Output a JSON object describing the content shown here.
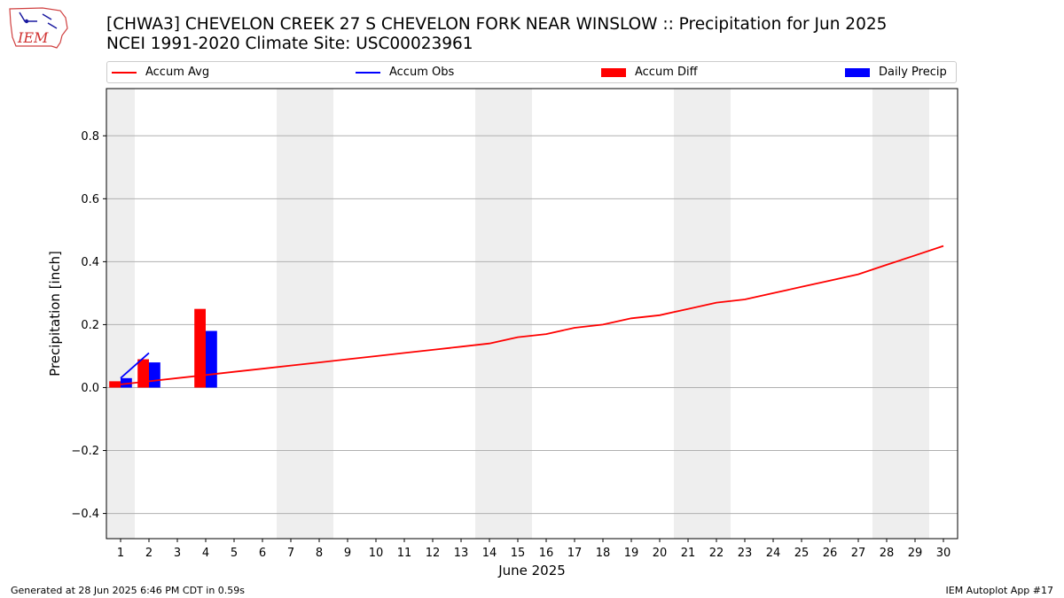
{
  "title": {
    "line1": "[CHWA3] CHEVELON CREEK 27 S CHEVELON FORK NEAR WINSLOW :: Precipitation for Jun 2025",
    "line2": "NCEI 1991-2020 Climate Site: USC00023961"
  },
  "logo": {
    "text": "IEM"
  },
  "legend": {
    "accum_avg": "Accum Avg",
    "accum_obs": "Accum Obs",
    "accum_diff": "Accum Diff",
    "daily_precip": "Daily Precip"
  },
  "colors": {
    "accum_avg": "#ff0000",
    "accum_obs": "#0000ff",
    "accum_diff": "#ff0000",
    "daily_precip": "#0000ff",
    "weekend_shade": "#eeeeee",
    "grid": "#b0b0b0"
  },
  "footer": {
    "left": "Generated at 28 Jun 2025 6:46 PM CDT in 0.59s",
    "right": "IEM Autoplot App #17"
  },
  "chart_data": {
    "type": "bar",
    "xlabel": "June 2025",
    "ylabel": "Precipitation [inch]",
    "xlim": [
      0.5,
      30.5
    ],
    "ylim": [
      -0.48,
      0.95
    ],
    "yticks": [
      -0.4,
      -0.2,
      0.0,
      0.2,
      0.4,
      0.6,
      0.8
    ],
    "ytick_labels": [
      "−0.4",
      "−0.2",
      "0.0",
      "0.2",
      "0.4",
      "0.6",
      "0.8"
    ],
    "days": [
      1,
      2,
      3,
      4,
      5,
      6,
      7,
      8,
      9,
      10,
      11,
      12,
      13,
      14,
      15,
      16,
      17,
      18,
      19,
      20,
      21,
      22,
      23,
      24,
      25,
      26,
      27,
      28,
      29,
      30
    ],
    "day_labels": [
      "1",
      "2",
      "3",
      "4",
      "5",
      "6",
      "7",
      "8",
      "9",
      "10",
      "11",
      "12",
      "13",
      "14",
      "15",
      "16",
      "17",
      "18",
      "19",
      "20",
      "21",
      "22",
      "23",
      "24",
      "25",
      "26",
      "27",
      "28",
      "29",
      "30"
    ],
    "weekend_days": [
      1,
      7,
      8,
      14,
      15,
      21,
      22,
      28,
      29
    ],
    "grid": true,
    "legend_position": "top",
    "series": [
      {
        "name": "Accum Avg",
        "kind": "line",
        "x": [
          1,
          2,
          3,
          4,
          5,
          6,
          7,
          8,
          9,
          10,
          11,
          12,
          13,
          14,
          15,
          16,
          17,
          18,
          19,
          20,
          21,
          22,
          23,
          24,
          25,
          26,
          27,
          28,
          29,
          30
        ],
        "values": [
          0.01,
          0.02,
          0.03,
          0.04,
          0.05,
          0.06,
          0.07,
          0.08,
          0.09,
          0.1,
          0.11,
          0.12,
          0.13,
          0.14,
          0.16,
          0.17,
          0.19,
          0.2,
          0.22,
          0.23,
          0.25,
          0.27,
          0.28,
          0.3,
          0.32,
          0.34,
          0.36,
          0.39,
          0.42,
          0.45
        ]
      },
      {
        "name": "Accum Obs",
        "kind": "line",
        "x": [
          1,
          2
        ],
        "values": [
          0.03,
          0.11
        ]
      },
      {
        "name": "Accum Diff",
        "kind": "bar",
        "x": [
          1,
          2,
          4
        ],
        "values": [
          0.02,
          0.09,
          0.25
        ]
      },
      {
        "name": "Daily Precip",
        "kind": "bar",
        "x": [
          1,
          2,
          4
        ],
        "values": [
          0.03,
          0.08,
          0.18
        ]
      }
    ]
  }
}
